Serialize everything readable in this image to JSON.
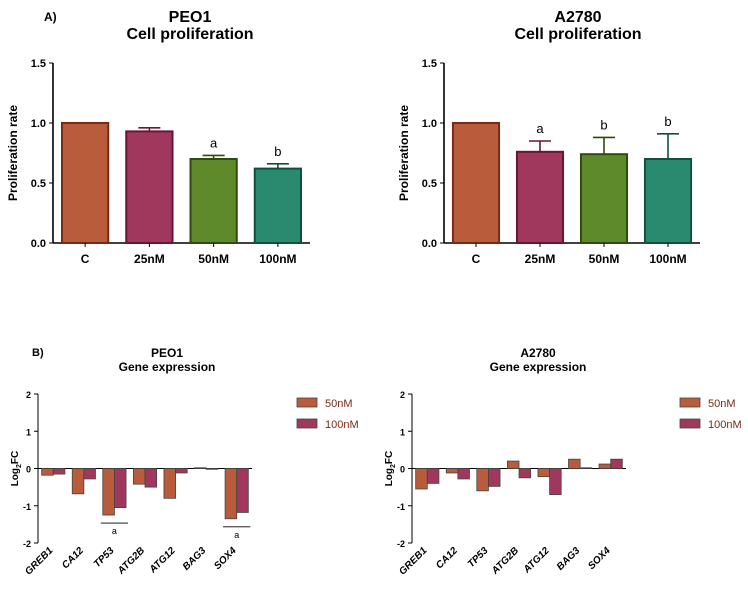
{
  "panel_labels": {
    "top": "A)",
    "bottom": "B)"
  },
  "chart_data": [
    {
      "id": "prolif-peo1",
      "type": "bar",
      "title": "PEO1",
      "subtitle": "Cell proliferation",
      "ylabel": "Proliferation rate",
      "xlabel": "",
      "ylim": [
        0,
        1.5
      ],
      "yticks": [
        "0.0",
        "0.5",
        "1.0",
        "1.5"
      ],
      "categories": [
        "C",
        "25nM",
        "50nM",
        "100nM"
      ],
      "values": [
        1.0,
        0.93,
        0.7,
        0.62
      ],
      "errors": [
        0,
        0.03,
        0.03,
        0.04
      ],
      "annotations": [
        "",
        "",
        "a",
        "b"
      ],
      "colors": [
        "#b85c3c",
        "#a0385e",
        "#5f8a2c",
        "#2a8a70"
      ],
      "edge_colors": [
        "#7a2a12",
        "#6a1535",
        "#304a10",
        "#11503c"
      ]
    },
    {
      "id": "prolif-a2780",
      "type": "bar",
      "title": "A2780",
      "subtitle": "Cell proliferation",
      "ylabel": "Proliferation rate",
      "xlabel": "",
      "ylim": [
        0,
        1.5
      ],
      "yticks": [
        "0.0",
        "0.5",
        "1.0",
        "1.5"
      ],
      "categories": [
        "C",
        "25nM",
        "50nM",
        "100nM"
      ],
      "values": [
        1.0,
        0.76,
        0.74,
        0.7
      ],
      "errors": [
        0,
        0.09,
        0.14,
        0.21
      ],
      "annotations": [
        "",
        "a",
        "b",
        "b"
      ],
      "colors": [
        "#b85c3c",
        "#a0385e",
        "#5f8a2c",
        "#2a8a70"
      ],
      "edge_colors": [
        "#7a2a12",
        "#6a1535",
        "#304a10",
        "#11503c"
      ]
    },
    {
      "id": "genes-peo1",
      "type": "bar",
      "title": "PEO1",
      "subtitle": "Gene expression",
      "ylabel_main": "Log",
      "ylabel_sub": "2",
      "ylabel_end": "FC",
      "ylim": [
        -2,
        2
      ],
      "yticks": [
        "-2",
        "-1",
        "0",
        "1",
        "2"
      ],
      "categories": [
        "GREB1",
        "CA12",
        "TP53",
        "ATG2B",
        "ATG12",
        "BAG3",
        "SOX4"
      ],
      "series": [
        {
          "name": "50nM",
          "color": "#b85c3c",
          "values": [
            -0.18,
            -0.68,
            -1.25,
            -0.42,
            -0.8,
            0.02,
            -1.35
          ]
        },
        {
          "name": "100nM",
          "color": "#a0385e",
          "values": [
            -0.15,
            -0.28,
            -1.05,
            -0.5,
            -0.12,
            0.0,
            -1.18
          ]
        }
      ],
      "significance": [
        {
          "category": "TP53",
          "label": "a"
        },
        {
          "category": "SOX4",
          "label": "a"
        }
      ]
    },
    {
      "id": "genes-a2780",
      "type": "bar",
      "title": "A2780",
      "subtitle": "Gene expression",
      "ylabel_main": "Log",
      "ylabel_sub": "2",
      "ylabel_end": "FC",
      "ylim": [
        -2,
        2
      ],
      "yticks": [
        "-2",
        "-1",
        "0",
        "1",
        "2"
      ],
      "categories": [
        "GREB1",
        "CA12",
        "TP53",
        "ATG2B",
        "ATG12",
        "BAG3",
        "SOX4"
      ],
      "series": [
        {
          "name": "50nM",
          "color": "#b85c3c",
          "values": [
            -0.55,
            -0.12,
            -0.6,
            0.2,
            -0.22,
            0.25,
            0.12
          ]
        },
        {
          "name": "100nM",
          "color": "#a0385e",
          "values": [
            -0.4,
            -0.28,
            -0.48,
            -0.25,
            -0.7,
            0.02,
            0.25
          ]
        }
      ],
      "significance": []
    }
  ]
}
